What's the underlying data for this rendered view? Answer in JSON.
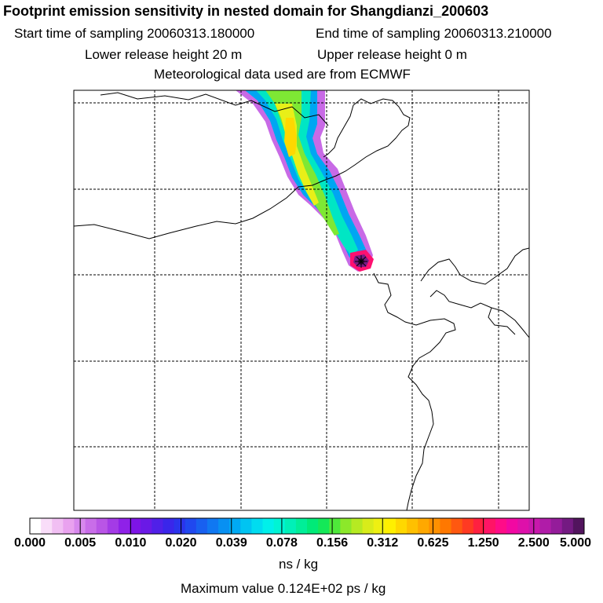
{
  "header": {
    "title": "Footprint emission sensitivity in nested domain for Shangdianzi_200603",
    "start_time": "Start time of sampling 20060313.180000",
    "end_time": "End time of sampling 20060313.210000",
    "lower_release": "Lower release height   20 m",
    "upper_release": "Upper release height    0 m",
    "met_data": "Meteorological data used are from ECMWF"
  },
  "chart_data": {
    "type": "heatmap",
    "title": "Footprint emission sensitivity in nested domain for Shangdianzi_200603",
    "colorbar": {
      "tick_labels": [
        "0.000",
        "0.005",
        "0.010",
        "0.020",
        "0.039",
        "0.078",
        "0.156",
        "0.312",
        "0.625",
        "1.250",
        "2.500",
        "5.000"
      ],
      "colors": [
        "#ffffff",
        "#f9ddf9",
        "#f1bff3",
        "#e9a2ef",
        "#d888ee",
        "#c96de9",
        "#b955e6",
        "#a43be6",
        "#8f21e8",
        "#7d14e6",
        "#6a19e6",
        "#5020e8",
        "#3a26ea",
        "#2a34ec",
        "#2048ef",
        "#1860f0",
        "#1078f2",
        "#0890f2",
        "#00aaf4",
        "#00c4f2",
        "#00dcf0",
        "#00f0ea",
        "#00f4d4",
        "#00f0b8",
        "#00ee98",
        "#00ea78",
        "#14e858",
        "#4ee83a",
        "#8ce82a",
        "#b6ea22",
        "#d8ec1a",
        "#eef012",
        "#fff000",
        "#ffd800",
        "#ffc000",
        "#ffa800",
        "#ff9000",
        "#ff7800",
        "#ff5810",
        "#ff3a22",
        "#ff2040",
        "#ff1466",
        "#ff0c88",
        "#f208a2",
        "#de10aa",
        "#c818ac",
        "#b01ca8",
        "#941c9a",
        "#741a82",
        "#52145e"
      ],
      "units": "ns / kg"
    },
    "max_value_text": "Maximum value  0.124E+02 ps / kg",
    "plume": {
      "description_levels": [
        "edge",
        "low",
        "mid",
        "high",
        "peak"
      ]
    }
  }
}
